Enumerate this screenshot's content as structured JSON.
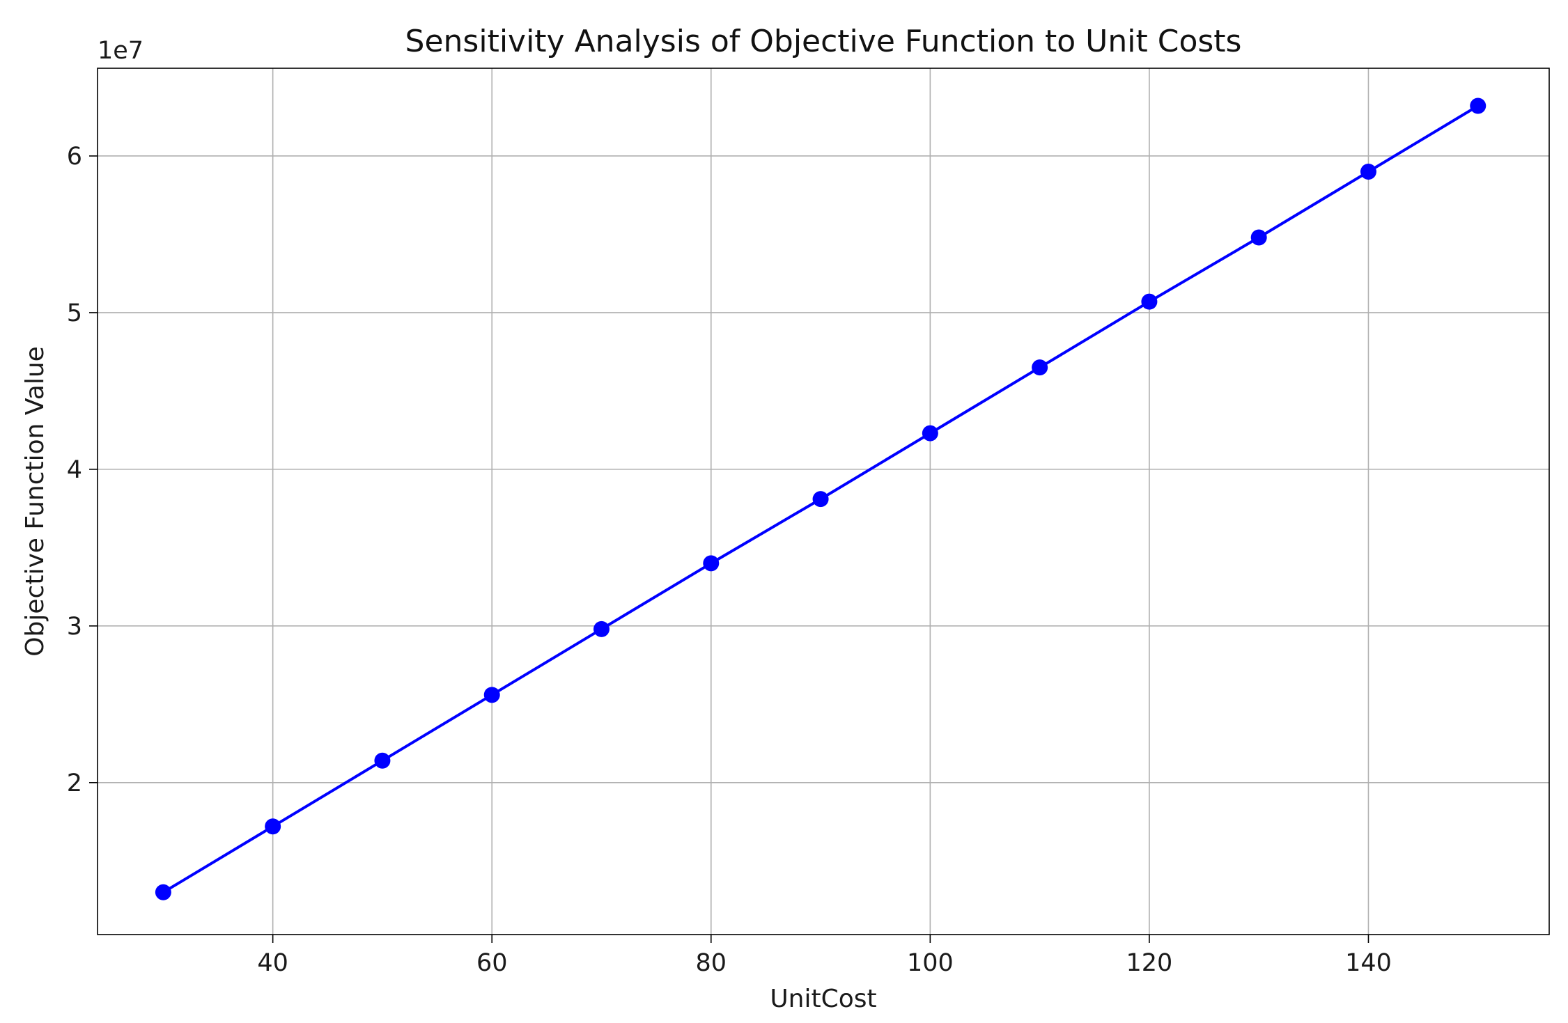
{
  "chart_data": {
    "type": "line",
    "title": "Sensitivity Analysis of Objective Function to Unit Costs",
    "xlabel": "UnitCost",
    "ylabel": "Objective Function Value",
    "y_offset_label": "1e7",
    "x": [
      30,
      40,
      50,
      60,
      70,
      80,
      90,
      100,
      110,
      120,
      130,
      140,
      150
    ],
    "series": [
      {
        "values": [
          13.0,
          17.2,
          21.4,
          25.6,
          29.8,
          34.0,
          38.1,
          42.3,
          46.5,
          50.7,
          54.8,
          59.0,
          63.2
        ],
        "color": "#0000ff",
        "marker": "circle"
      }
    ],
    "xlim": [
      24,
      156.5
    ],
    "ylim": [
      10.3,
      65.6
    ],
    "xticks": [
      40,
      60,
      80,
      100,
      120,
      140
    ],
    "xtick_labels": [
      "40",
      "60",
      "80",
      "100",
      "120",
      "140"
    ],
    "yticks": [
      20,
      30,
      40,
      50,
      60
    ],
    "ytick_labels": [
      "2",
      "3",
      "4",
      "5",
      "6"
    ],
    "grid": true,
    "legend": "none"
  }
}
